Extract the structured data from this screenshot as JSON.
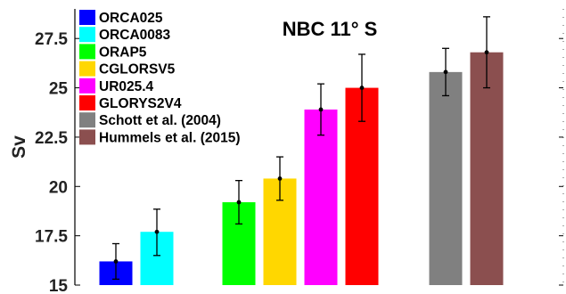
{
  "chart_data": {
    "type": "bar",
    "title": "NBC 11° S",
    "ylabel": "Sv",
    "xlabel": "",
    "ylim": [
      15,
      29
    ],
    "yticks": [
      15,
      17.5,
      20,
      22.5,
      25,
      27.5
    ],
    "ytick_labels": [
      "15",
      "17.5",
      "20",
      "22.5",
      "25",
      "27.5"
    ],
    "grid": false,
    "legend_position": "top-left",
    "series": [
      {
        "name": "ORCA025",
        "value": 16.2,
        "err_low": 15.3,
        "err_high": 17.1,
        "color": "#0000ff",
        "group": 0
      },
      {
        "name": "ORCA0083",
        "value": 17.7,
        "err_low": 16.5,
        "err_high": 18.85,
        "color": "#00ffff",
        "group": 0
      },
      {
        "name": "ORAP5",
        "value": 19.2,
        "err_low": 18.1,
        "err_high": 20.3,
        "color": "#00ff00",
        "group": 1
      },
      {
        "name": "CGLORSV5",
        "value": 20.4,
        "err_low": 19.3,
        "err_high": 21.5,
        "color": "#ffd700",
        "group": 1
      },
      {
        "name": "UR025.4",
        "value": 23.9,
        "err_low": 22.6,
        "err_high": 25.2,
        "color": "#ff00ff",
        "group": 1
      },
      {
        "name": "GLORYS2V4",
        "value": 25.0,
        "err_low": 23.3,
        "err_high": 26.7,
        "color": "#ff0000",
        "group": 1
      },
      {
        "name": "Schott et al. (2004)",
        "value": 25.8,
        "err_low": 24.6,
        "err_high": 27.0,
        "color": "#808080",
        "group": 2
      },
      {
        "name": "Hummels et al. (2015)",
        "value": 26.8,
        "err_low": 25.0,
        "err_high": 28.6,
        "color": "#8b4f4f",
        "group": 2
      }
    ]
  }
}
